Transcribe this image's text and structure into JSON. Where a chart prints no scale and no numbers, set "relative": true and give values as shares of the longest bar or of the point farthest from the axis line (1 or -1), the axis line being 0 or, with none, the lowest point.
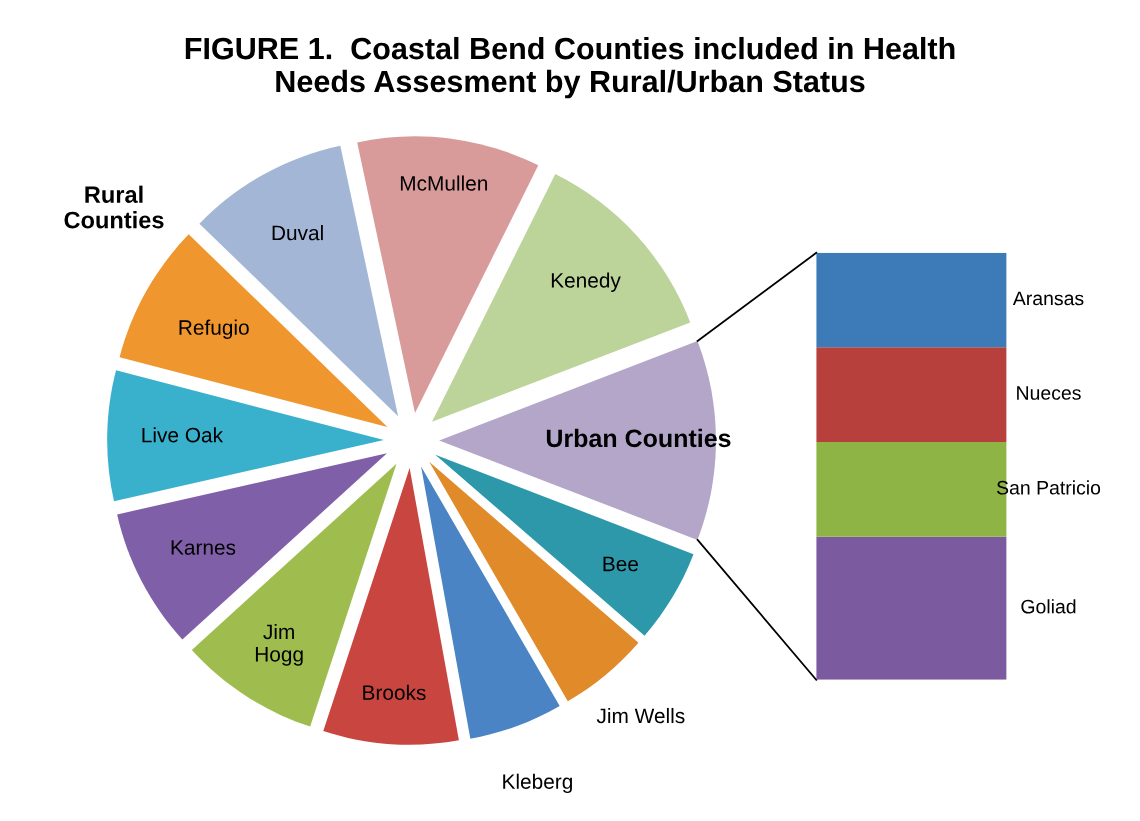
{
  "chart_data": [
    {
      "type": "pie",
      "title": "FIGURE 1.  Coastal Bend Counties included in Health\nNeeds Assesment by Rural/Urban Status",
      "categories": [
        "Urban Counties",
        "Bee",
        "Jim Wells",
        "Kleberg",
        "Brooks",
        "Jim\nHogg",
        "Karnes",
        "Live Oak",
        "Refugio",
        "Duval",
        "McMullen",
        "Kenedy"
      ],
      "values": [
        11.7,
        5.5,
        5.3,
        5.5,
        7.9,
        8.2,
        8.2,
        7.6,
        8.2,
        9.4,
        10.7,
        11.8
      ],
      "colors": [
        "#b3a6c9",
        "#2e98ab",
        "#e08a2a",
        "#4a84c4",
        "#c9453f",
        "#9ebd4e",
        "#7f5fa8",
        "#3ab1cc",
        "#f0962f",
        "#a4b6d6",
        "#d99a9a",
        "#bcd39a"
      ],
      "annotations": [
        "Rural\nCounties"
      ]
    },
    {
      "type": "bar",
      "stacked": true,
      "relative": true,
      "categories": [
        null
      ],
      "series": [
        {
          "name": "Goliad",
          "color": "#7b5a9f",
          "values": [
            0.335
          ]
        },
        {
          "name": "San Patricio",
          "color": "#8fb446",
          "values": [
            0.222
          ]
        },
        {
          "name": "Nueces",
          "color": "#b8403c",
          "values": [
            0.222
          ]
        },
        {
          "name": "Aransas",
          "color": "#3d7ab8",
          "values": [
            0.221
          ]
        }
      ]
    }
  ]
}
